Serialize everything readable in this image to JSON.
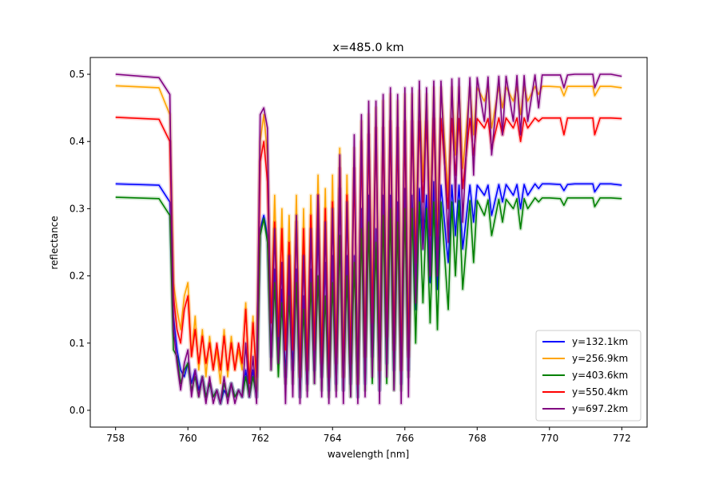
{
  "chart_data": {
    "type": "line",
    "title": "x=485.0 km",
    "xlabel": "wavelength [nm]",
    "ylabel": "reflectance",
    "xlim": [
      757.3,
      772.7
    ],
    "ylim": [
      -0.025,
      0.525
    ],
    "xticks": [
      758,
      760,
      762,
      764,
      766,
      768,
      770,
      772
    ],
    "yticks": [
      0.0,
      0.1,
      0.2,
      0.3,
      0.4,
      0.5
    ],
    "ytick_labels": [
      "0.0",
      "0.1",
      "0.2",
      "0.3",
      "0.4",
      "0.5"
    ],
    "grid": false,
    "legend_position": "lower-right",
    "series": [
      {
        "name": "y=132.1km",
        "color": "#0000ff",
        "continuum": 0.337,
        "x": [
          758.0,
          759.2,
          759.5,
          759.6,
          759.7,
          759.8,
          759.9,
          760.0,
          760.1,
          760.2,
          760.3,
          760.4,
          760.5,
          760.6,
          760.7,
          760.8,
          760.9,
          761.0,
          761.1,
          761.2,
          761.3,
          761.4,
          761.5,
          761.6,
          761.7,
          761.8,
          761.9,
          762.0,
          762.1,
          762.2,
          762.3,
          762.4,
          762.5,
          762.6,
          762.7,
          762.8,
          762.9,
          763.0,
          763.1,
          763.2,
          763.3,
          763.4,
          763.5,
          763.6,
          763.7,
          763.8,
          763.9,
          764.0,
          764.1,
          764.2,
          764.3,
          764.4,
          764.5,
          764.6,
          764.7,
          764.8,
          764.9,
          765.0,
          765.1,
          765.2,
          765.3,
          765.4,
          765.5,
          765.6,
          765.7,
          765.8,
          765.9,
          766.0,
          766.1,
          766.2,
          766.3,
          766.4,
          766.5,
          766.6,
          766.7,
          766.8,
          766.9,
          767.0,
          767.2,
          767.3,
          767.4,
          767.5,
          767.6,
          767.8,
          767.9,
          768.0,
          768.2,
          768.3,
          768.4,
          768.6,
          768.7,
          768.8,
          769.0,
          769.1,
          769.2,
          769.3,
          769.4,
          769.6,
          769.7,
          769.8,
          770.0,
          770.3,
          770.4,
          770.5,
          770.7,
          771.0,
          771.2,
          771.25,
          771.4,
          771.7,
          772.0
        ],
        "y": [
          0.337,
          0.335,
          0.31,
          0.14,
          0.09,
          0.06,
          0.05,
          0.07,
          0.04,
          0.06,
          0.03,
          0.05,
          0.02,
          0.04,
          0.02,
          0.03,
          0.01,
          0.03,
          0.02,
          0.04,
          0.02,
          0.03,
          0.02,
          0.06,
          0.02,
          0.06,
          0.02,
          0.27,
          0.29,
          0.26,
          0.08,
          0.21,
          0.1,
          0.18,
          0.05,
          0.19,
          0.06,
          0.21,
          0.02,
          0.17,
          0.04,
          0.21,
          0.06,
          0.27,
          0.05,
          0.22,
          0.03,
          0.23,
          0.04,
          0.33,
          0.03,
          0.23,
          0.04,
          0.23,
          0.02,
          0.3,
          0.04,
          0.32,
          0.08,
          0.27,
          0.03,
          0.32,
          0.07,
          0.32,
          0.06,
          0.31,
          0.04,
          0.33,
          0.06,
          0.32,
          0.15,
          0.33,
          0.24,
          0.32,
          0.19,
          0.34,
          0.18,
          0.335,
          0.22,
          0.335,
          0.26,
          0.335,
          0.24,
          0.335,
          0.28,
          0.335,
          0.32,
          0.335,
          0.29,
          0.336,
          0.31,
          0.336,
          0.32,
          0.336,
          0.3,
          0.336,
          0.32,
          0.337,
          0.33,
          0.337,
          0.337,
          0.336,
          0.327,
          0.336,
          0.337,
          0.337,
          0.337,
          0.325,
          0.337,
          0.337,
          0.335
        ]
      },
      {
        "name": "y=256.9km",
        "color": "#ffa500",
        "continuum": 0.483,
        "x": [
          758.0,
          759.2,
          759.5,
          759.6,
          759.7,
          759.8,
          759.9,
          760.0,
          760.1,
          760.2,
          760.3,
          760.4,
          760.5,
          760.6,
          760.7,
          760.8,
          760.9,
          761.0,
          761.1,
          761.2,
          761.3,
          761.4,
          761.5,
          761.6,
          761.7,
          761.8,
          761.9,
          762.0,
          762.1,
          762.2,
          762.3,
          762.4,
          762.5,
          762.6,
          762.7,
          762.8,
          762.9,
          763.0,
          763.1,
          763.2,
          763.3,
          763.4,
          763.5,
          763.6,
          763.7,
          763.8,
          763.9,
          764.0,
          764.1,
          764.2,
          764.3,
          764.4,
          764.5,
          764.6,
          764.7,
          764.8,
          764.9,
          765.0,
          765.1,
          765.2,
          765.3,
          765.4,
          765.5,
          765.6,
          765.7,
          765.8,
          765.9,
          766.0,
          766.1,
          766.2,
          766.3,
          766.4,
          766.5,
          766.6,
          766.7,
          766.8,
          766.9,
          767.0,
          767.2,
          767.3,
          767.4,
          767.5,
          767.6,
          767.8,
          767.9,
          768.0,
          768.2,
          768.3,
          768.4,
          768.6,
          768.7,
          768.8,
          769.0,
          769.1,
          769.2,
          769.3,
          769.4,
          769.6,
          769.7,
          769.8,
          770.0,
          770.3,
          770.4,
          770.5,
          770.7,
          771.0,
          771.2,
          771.25,
          771.4,
          771.7,
          772.0
        ],
        "y": [
          0.483,
          0.48,
          0.44,
          0.19,
          0.15,
          0.12,
          0.17,
          0.19,
          0.08,
          0.14,
          0.06,
          0.12,
          0.05,
          0.11,
          0.06,
          0.09,
          0.04,
          0.12,
          0.05,
          0.11,
          0.06,
          0.09,
          0.06,
          0.16,
          0.04,
          0.14,
          0.03,
          0.4,
          0.44,
          0.38,
          0.14,
          0.32,
          0.12,
          0.3,
          0.09,
          0.29,
          0.1,
          0.32,
          0.05,
          0.3,
          0.06,
          0.32,
          0.1,
          0.35,
          0.08,
          0.33,
          0.05,
          0.35,
          0.08,
          0.39,
          0.05,
          0.35,
          0.08,
          0.39,
          0.04,
          0.43,
          0.08,
          0.44,
          0.14,
          0.45,
          0.06,
          0.46,
          0.12,
          0.47,
          0.1,
          0.46,
          0.06,
          0.47,
          0.09,
          0.47,
          0.24,
          0.475,
          0.34,
          0.47,
          0.28,
          0.48,
          0.26,
          0.48,
          0.32,
          0.48,
          0.38,
          0.48,
          0.36,
          0.48,
          0.41,
          0.48,
          0.46,
          0.48,
          0.42,
          0.481,
          0.45,
          0.481,
          0.46,
          0.481,
          0.44,
          0.481,
          0.46,
          0.482,
          0.47,
          0.482,
          0.482,
          0.481,
          0.468,
          0.482,
          0.482,
          0.482,
          0.482,
          0.468,
          0.482,
          0.482,
          0.48
        ]
      },
      {
        "name": "y=403.6km",
        "color": "#008000",
        "continuum": 0.317,
        "x": [
          758.0,
          759.2,
          759.5,
          759.6,
          759.7,
          759.8,
          759.9,
          760.0,
          760.1,
          760.2,
          760.3,
          760.4,
          760.5,
          760.6,
          760.7,
          760.8,
          760.9,
          761.0,
          761.1,
          761.2,
          761.3,
          761.4,
          761.5,
          761.6,
          761.7,
          761.8,
          761.9,
          762.0,
          762.1,
          762.2,
          762.3,
          762.4,
          762.5,
          762.6,
          762.7,
          762.8,
          762.9,
          763.0,
          763.1,
          763.2,
          763.3,
          763.4,
          763.5,
          763.6,
          763.7,
          763.8,
          763.9,
          764.0,
          764.1,
          764.2,
          764.3,
          764.4,
          764.5,
          764.6,
          764.7,
          764.8,
          764.9,
          765.0,
          765.1,
          765.2,
          765.3,
          765.4,
          765.5,
          765.6,
          765.7,
          765.8,
          765.9,
          766.0,
          766.1,
          766.2,
          766.3,
          766.4,
          766.5,
          766.6,
          766.7,
          766.8,
          766.9,
          767.0,
          767.2,
          767.3,
          767.4,
          767.5,
          767.6,
          767.8,
          767.9,
          768.0,
          768.2,
          768.3,
          768.4,
          768.6,
          768.7,
          768.8,
          769.0,
          769.1,
          769.2,
          769.3,
          769.4,
          769.6,
          769.7,
          769.8,
          770.0,
          770.3,
          770.4,
          770.5,
          770.7,
          771.0,
          771.2,
          771.25,
          771.4,
          771.7,
          772.0
        ],
        "y": [
          0.317,
          0.315,
          0.29,
          0.09,
          0.08,
          0.04,
          0.06,
          0.07,
          0.03,
          0.05,
          0.02,
          0.05,
          0.02,
          0.04,
          0.02,
          0.03,
          0.01,
          0.04,
          0.02,
          0.04,
          0.02,
          0.03,
          0.02,
          0.05,
          0.02,
          0.05,
          0.02,
          0.26,
          0.285,
          0.25,
          0.06,
          0.19,
          0.05,
          0.16,
          0.04,
          0.17,
          0.04,
          0.19,
          0.02,
          0.15,
          0.03,
          0.19,
          0.04,
          0.2,
          0.03,
          0.17,
          0.02,
          0.19,
          0.03,
          0.26,
          0.03,
          0.2,
          0.02,
          0.22,
          0.02,
          0.27,
          0.03,
          0.28,
          0.04,
          0.25,
          0.03,
          0.29,
          0.04,
          0.3,
          0.03,
          0.28,
          0.03,
          0.3,
          0.05,
          0.3,
          0.1,
          0.31,
          0.16,
          0.3,
          0.13,
          0.31,
          0.12,
          0.31,
          0.15,
          0.31,
          0.2,
          0.312,
          0.18,
          0.312,
          0.22,
          0.312,
          0.29,
          0.313,
          0.26,
          0.314,
          0.28,
          0.314,
          0.3,
          0.315,
          0.27,
          0.315,
          0.3,
          0.316,
          0.31,
          0.316,
          0.316,
          0.315,
          0.305,
          0.316,
          0.316,
          0.316,
          0.316,
          0.303,
          0.316,
          0.316,
          0.315
        ]
      },
      {
        "name": "y=550.4km",
        "color": "#ff0000",
        "continuum": 0.436,
        "x": [
          758.0,
          759.2,
          759.5,
          759.6,
          759.7,
          759.8,
          759.9,
          760.0,
          760.1,
          760.2,
          760.3,
          760.4,
          760.5,
          760.6,
          760.7,
          760.8,
          760.9,
          761.0,
          761.1,
          761.2,
          761.3,
          761.4,
          761.5,
          761.6,
          761.7,
          761.8,
          761.9,
          762.0,
          762.1,
          762.2,
          762.3,
          762.4,
          762.5,
          762.6,
          762.7,
          762.8,
          762.9,
          763.0,
          763.1,
          763.2,
          763.3,
          763.4,
          763.5,
          763.6,
          763.7,
          763.8,
          763.9,
          764.0,
          764.1,
          764.2,
          764.3,
          764.4,
          764.5,
          764.6,
          764.7,
          764.8,
          764.9,
          765.0,
          765.1,
          765.2,
          765.3,
          765.4,
          765.5,
          765.6,
          765.7,
          765.8,
          765.9,
          766.0,
          766.1,
          766.2,
          766.3,
          766.4,
          766.5,
          766.6,
          766.7,
          766.8,
          766.9,
          767.0,
          767.2,
          767.3,
          767.4,
          767.5,
          767.6,
          767.8,
          767.9,
          768.0,
          768.2,
          768.3,
          768.4,
          768.6,
          768.7,
          768.8,
          769.0,
          769.1,
          769.2,
          769.3,
          769.4,
          769.6,
          769.7,
          769.8,
          770.0,
          770.3,
          770.4,
          770.5,
          770.7,
          771.0,
          771.2,
          771.25,
          771.4,
          771.7,
          772.0
        ],
        "y": [
          0.436,
          0.433,
          0.4,
          0.17,
          0.12,
          0.1,
          0.15,
          0.17,
          0.08,
          0.12,
          0.07,
          0.11,
          0.07,
          0.1,
          0.06,
          0.1,
          0.06,
          0.11,
          0.06,
          0.1,
          0.06,
          0.1,
          0.07,
          0.15,
          0.04,
          0.13,
          0.05,
          0.37,
          0.4,
          0.34,
          0.13,
          0.28,
          0.11,
          0.27,
          0.09,
          0.25,
          0.09,
          0.28,
          0.05,
          0.27,
          0.06,
          0.29,
          0.09,
          0.32,
          0.07,
          0.3,
          0.05,
          0.31,
          0.07,
          0.36,
          0.05,
          0.32,
          0.07,
          0.36,
          0.04,
          0.4,
          0.08,
          0.41,
          0.13,
          0.42,
          0.06,
          0.42,
          0.11,
          0.43,
          0.09,
          0.42,
          0.06,
          0.43,
          0.08,
          0.43,
          0.22,
          0.43,
          0.31,
          0.43,
          0.26,
          0.434,
          0.24,
          0.434,
          0.3,
          0.434,
          0.35,
          0.434,
          0.33,
          0.434,
          0.38,
          0.434,
          0.42,
          0.434,
          0.39,
          0.435,
          0.41,
          0.435,
          0.42,
          0.435,
          0.4,
          0.435,
          0.42,
          0.435,
          0.43,
          0.435,
          0.435,
          0.435,
          0.41,
          0.435,
          0.435,
          0.435,
          0.435,
          0.41,
          0.435,
          0.435,
          0.434
        ]
      },
      {
        "name": "y=697.2km",
        "color": "#800080",
        "continuum": 0.5,
        "x": [
          758.0,
          759.2,
          759.5,
          759.6,
          759.7,
          759.8,
          759.9,
          760.0,
          760.1,
          760.2,
          760.3,
          760.4,
          760.5,
          760.6,
          760.7,
          760.8,
          760.9,
          761.0,
          761.1,
          761.2,
          761.3,
          761.4,
          761.5,
          761.6,
          761.7,
          761.8,
          761.9,
          762.0,
          762.1,
          762.2,
          762.3,
          762.4,
          762.5,
          762.6,
          762.7,
          762.8,
          762.9,
          763.0,
          763.1,
          763.2,
          763.3,
          763.4,
          763.5,
          763.6,
          763.7,
          763.8,
          763.9,
          764.0,
          764.1,
          764.2,
          764.3,
          764.4,
          764.5,
          764.6,
          764.7,
          764.8,
          764.9,
          765.0,
          765.1,
          765.2,
          765.3,
          765.4,
          765.5,
          765.6,
          765.7,
          765.8,
          765.9,
          766.0,
          766.1,
          766.2,
          766.3,
          766.4,
          766.5,
          766.6,
          766.7,
          766.8,
          766.9,
          767.0,
          767.2,
          767.3,
          767.4,
          767.5,
          767.6,
          767.8,
          767.9,
          768.0,
          768.2,
          768.3,
          768.4,
          768.6,
          768.7,
          768.8,
          769.0,
          769.1,
          769.2,
          769.3,
          769.4,
          769.6,
          769.7,
          769.8,
          770.0,
          770.3,
          770.4,
          770.5,
          770.7,
          771.0,
          771.2,
          771.25,
          771.4,
          771.7,
          772.0
        ],
        "y": [
          0.5,
          0.495,
          0.47,
          0.12,
          0.07,
          0.03,
          0.07,
          0.09,
          0.02,
          0.06,
          0.02,
          0.05,
          0.01,
          0.05,
          0.01,
          0.03,
          0.01,
          0.05,
          0.01,
          0.04,
          0.01,
          0.03,
          0.02,
          0.1,
          0.02,
          0.08,
          0.01,
          0.44,
          0.45,
          0.42,
          0.06,
          0.27,
          0.07,
          0.22,
          0.01,
          0.23,
          0.02,
          0.29,
          0.01,
          0.23,
          0.02,
          0.27,
          0.04,
          0.32,
          0.02,
          0.28,
          0.01,
          0.3,
          0.02,
          0.38,
          0.01,
          0.31,
          0.02,
          0.41,
          0.01,
          0.44,
          0.02,
          0.46,
          0.05,
          0.46,
          0.01,
          0.47,
          0.05,
          0.48,
          0.03,
          0.47,
          0.01,
          0.48,
          0.02,
          0.48,
          0.16,
          0.49,
          0.24,
          0.48,
          0.2,
          0.49,
          0.2,
          0.49,
          0.25,
          0.493,
          0.31,
          0.494,
          0.28,
          0.495,
          0.35,
          0.495,
          0.43,
          0.496,
          0.38,
          0.497,
          0.41,
          0.497,
          0.43,
          0.498,
          0.41,
          0.498,
          0.43,
          0.499,
          0.45,
          0.499,
          0.499,
          0.499,
          0.48,
          0.499,
          0.5,
          0.5,
          0.5,
          0.48,
          0.5,
          0.5,
          0.497
        ]
      }
    ]
  }
}
